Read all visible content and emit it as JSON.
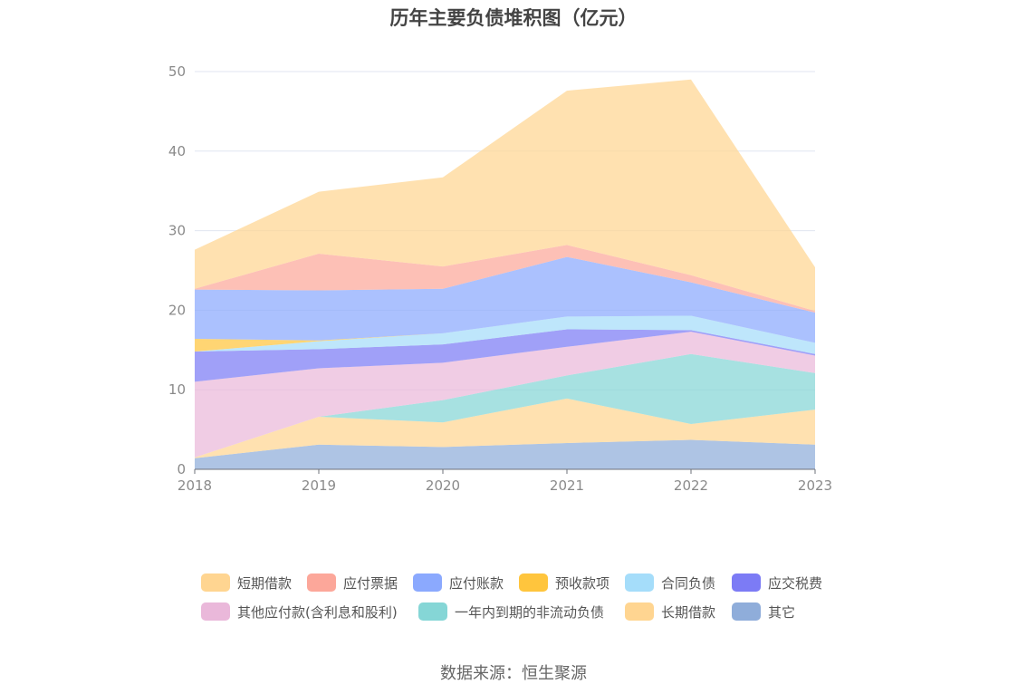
{
  "chart_data": {
    "type": "area",
    "stacked": true,
    "title": "历年主要负债堆积图（亿元）",
    "x": [
      "2018",
      "2019",
      "2020",
      "2021",
      "2022",
      "2023"
    ],
    "ylim": [
      0,
      50
    ],
    "yticks": [
      0,
      10,
      20,
      30,
      40,
      50
    ],
    "grid": true,
    "legend_position": "bottom",
    "series": [
      {
        "name": "短期借款",
        "color": "#FFD591",
        "values": [
          4.9,
          7.8,
          11.2,
          19.4,
          24.6,
          5.5
        ]
      },
      {
        "name": "应付票据",
        "color": "#FCA79A",
        "values": [
          0.1,
          4.6,
          2.8,
          1.5,
          0.9,
          0.2
        ]
      },
      {
        "name": "应付账款",
        "color": "#8BA9FE",
        "values": [
          6.2,
          6.3,
          5.6,
          7.5,
          4.2,
          3.8
        ]
      },
      {
        "name": "预收款项",
        "color": "#FFC53D",
        "values": [
          1.6,
          0.1,
          0.0,
          0.0,
          0.0,
          0.0
        ]
      },
      {
        "name": "合同负债",
        "color": "#A5DDFA",
        "values": [
          0.0,
          1.0,
          1.4,
          1.6,
          1.8,
          1.4
        ]
      },
      {
        "name": "应交税费",
        "color": "#7C7BF5",
        "values": [
          3.8,
          2.4,
          2.3,
          2.2,
          0.2,
          0.2
        ]
      },
      {
        "name": "其他应付款(含利息和股利)",
        "color": "#EAB8DA",
        "values": [
          9.5,
          6.1,
          4.7,
          3.6,
          2.8,
          2.2
        ]
      },
      {
        "name": "一年内到期的非流动负债",
        "color": "#85D6D6",
        "values": [
          0.0,
          0.0,
          2.8,
          2.9,
          8.8,
          4.6
        ]
      },
      {
        "name": "长期借款",
        "color": "#FFD591",
        "values": [
          0.1,
          3.5,
          3.1,
          5.6,
          2.0,
          4.4
        ]
      },
      {
        "name": "其它",
        "color": "#8FADDA",
        "values": [
          1.4,
          3.1,
          2.8,
          3.3,
          3.7,
          3.1
        ]
      }
    ]
  },
  "legend": [
    "短期借款",
    "应付票据",
    "应付账款",
    "预收款项",
    "合同负债",
    "应交税费",
    "其他应付款(含利息和股利)",
    "一年内到期的非流动负债",
    "长期借款",
    "其它"
  ],
  "source": "数据来源：恒生聚源"
}
